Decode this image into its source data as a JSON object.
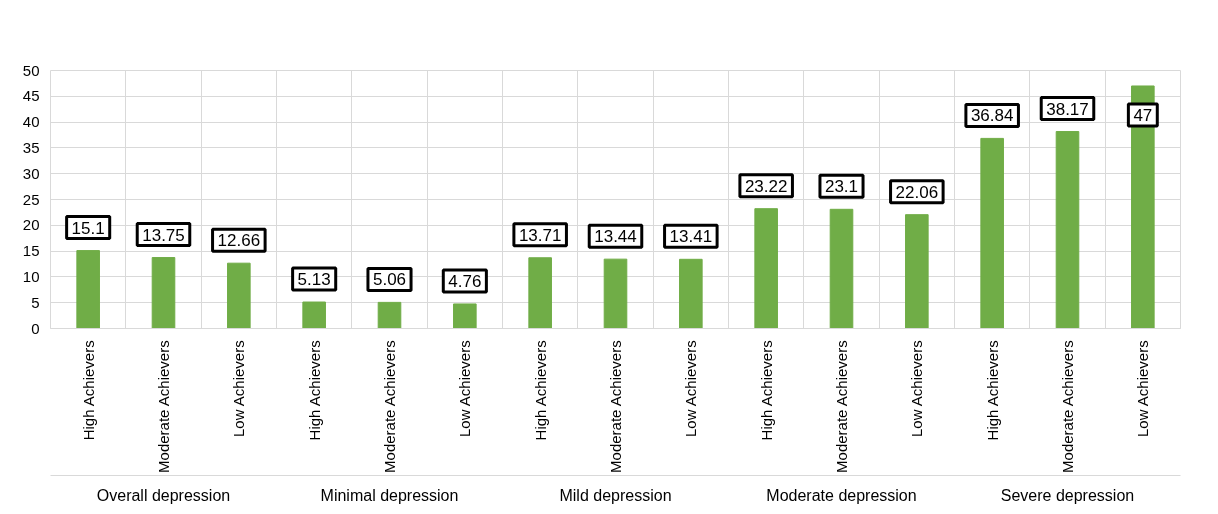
{
  "chart_data": {
    "type": "bar",
    "categories": [
      "High Achievers",
      "Moderate Achievers",
      "Low Achievers",
      "High Achievers",
      "Moderate Achievers",
      "Low Achievers",
      "High Achievers",
      "Moderate Achievers",
      "Low Achievers",
      "High Achievers",
      "Moderate Achievers",
      "Low Achievers",
      "High Achievers",
      "Moderate Achievers",
      "Low Achievers"
    ],
    "values": [
      15.1,
      13.75,
      12.66,
      5.13,
      5.06,
      4.76,
      13.71,
      13.44,
      13.41,
      23.22,
      23.1,
      22.06,
      36.84,
      38.17,
      47
    ],
    "color": "#70ad47",
    "annotations": [
      "Overall depression",
      "Minimal depression",
      "Mild depression",
      "Moderate depression",
      "Severe depression"
    ],
    "ylim": [
      0,
      50
    ],
    "yticks": [
      0,
      5,
      10,
      15,
      20,
      25,
      30,
      35,
      40,
      45,
      50
    ],
    "grid": true,
    "data_labels": true
  }
}
